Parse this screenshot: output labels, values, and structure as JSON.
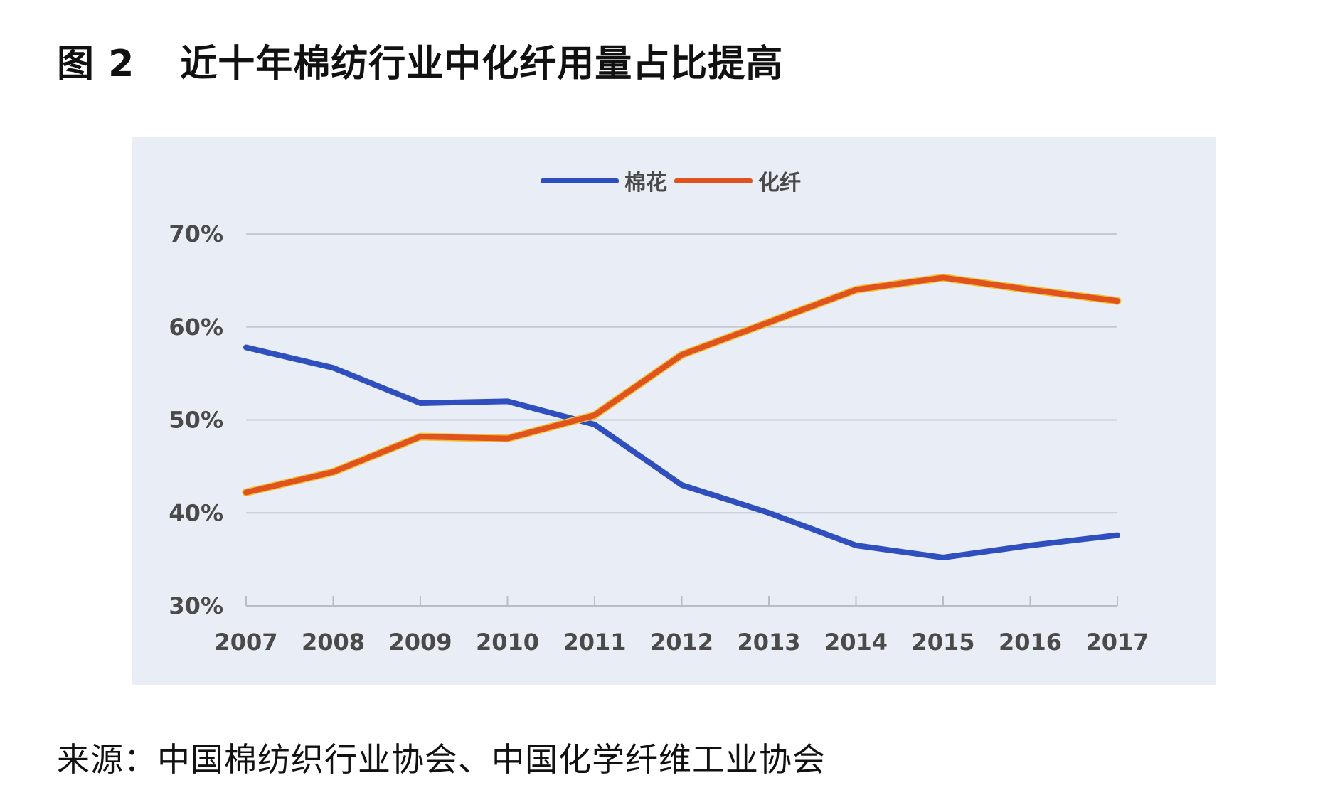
{
  "figure": {
    "number": "图 2",
    "title": "近十年棉纺行业中化纤用量占比提高"
  },
  "source": "来源：中国棉纺织行业协会、中国化学纤维工业协会",
  "chart_data": {
    "type": "line",
    "x": [
      "2007",
      "2008",
      "2009",
      "2010",
      "2011",
      "2012",
      "2013",
      "2014",
      "2015",
      "2016",
      "2017"
    ],
    "series": [
      {
        "name": "棉花",
        "color": "#2f4fbf",
        "values": [
          57.8,
          55.6,
          51.8,
          52.0,
          49.5,
          43.0,
          40.0,
          36.5,
          35.2,
          36.5,
          37.6
        ]
      },
      {
        "name": "化纤",
        "color": "#e0531f",
        "values": [
          42.2,
          44.4,
          48.2,
          48.0,
          50.5,
          57.0,
          60.5,
          64.0,
          65.3,
          64.0,
          62.8
        ]
      }
    ],
    "ylim": [
      30,
      70
    ],
    "yticks": [
      "30%",
      "40%",
      "50%",
      "60%",
      "70%"
    ],
    "ytick_values": [
      30,
      40,
      50,
      60,
      70
    ],
    "grid": true,
    "legend_position": "top-center"
  }
}
